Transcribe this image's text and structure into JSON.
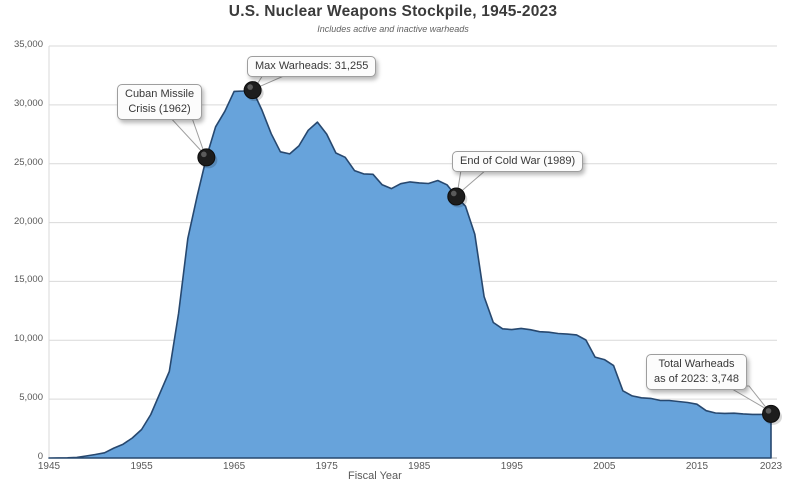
{
  "page": {
    "background": "#ffffff"
  },
  "colors": {
    "area_fill": "#67a3db",
    "area_stroke": "#27486f",
    "grid": "#d9d9d9",
    "axis": "#a8a8a8",
    "marker": "#1d1d1d",
    "marker_highlight": "#666666",
    "callout_bg": "#fcfcfc",
    "callout_border": "#9e9e9e",
    "title_text": "#3b3b3b",
    "tick_text": "#595959"
  },
  "chart_data": {
    "type": "area",
    "title": "U.S. Nuclear Weapons Stockpile, 1945-2023",
    "subtitle": "Includes active and inactive warheads",
    "xlabel": "Fiscal Year",
    "ylabel": "",
    "ylim": [
      0,
      35000
    ],
    "grid": "horizontal",
    "legend": "none",
    "years": [
      1945,
      1946,
      1947,
      1948,
      1949,
      1950,
      1951,
      1952,
      1953,
      1954,
      1955,
      1956,
      1957,
      1958,
      1959,
      1960,
      1961,
      1962,
      1963,
      1964,
      1965,
      1966,
      1967,
      1968,
      1969,
      1970,
      1971,
      1972,
      1973,
      1974,
      1975,
      1976,
      1977,
      1978,
      1979,
      1980,
      1981,
      1982,
      1983,
      1984,
      1985,
      1986,
      1987,
      1988,
      1989,
      1990,
      1991,
      1992,
      1993,
      1994,
      1995,
      1996,
      1997,
      1998,
      1999,
      2000,
      2001,
      2002,
      2003,
      2004,
      2005,
      2006,
      2007,
      2008,
      2009,
      2010,
      2011,
      2012,
      2013,
      2014,
      2015,
      2016,
      2017,
      2018,
      2019,
      2020,
      2021,
      2022,
      2023
    ],
    "values": [
      2,
      9,
      13,
      50,
      170,
      299,
      438,
      841,
      1169,
      1703,
      2422,
      3692,
      5543,
      7345,
      12298,
      18638,
      22229,
      25540,
      28133,
      29463,
      31139,
      31175,
      31255,
      29561,
      27552,
      26008,
      25830,
      26516,
      27835,
      28537,
      27519,
      25914,
      25542,
      24418,
      24138,
      24104,
      23208,
      22886,
      23305,
      23459,
      23368,
      23317,
      23575,
      23205,
      22217,
      21392,
      19008,
      13708,
      11511,
      10979,
      10904,
      11011,
      10903,
      10732,
      10685,
      10577,
      10526,
      10457,
      10027,
      8570,
      8360,
      7853,
      5709,
      5273,
      5113,
      5066,
      4897,
      4881,
      4804,
      4717,
      4571,
      4018,
      3822,
      3785,
      3805,
      3750,
      3708,
      3708,
      3748
    ],
    "yticks": [
      0,
      5000,
      10000,
      15000,
      20000,
      25000,
      30000,
      35000
    ],
    "ytick_labels": [
      "0",
      "5,000",
      "10,000",
      "15,000",
      "20,000",
      "25,000",
      "30,000",
      "35,000"
    ],
    "xticks": [
      1945,
      1955,
      1965,
      1975,
      1985,
      1995,
      2005,
      2015,
      2023
    ],
    "annotations": [
      {
        "text": "Cuban Missile Crisis (1962)",
        "lines": [
          "Cuban Missile",
          "Crisis (1962)"
        ],
        "year": 1962,
        "value": 25540
      },
      {
        "text": "Max Warheads: 31,255",
        "lines": [
          "Max Warheads: 31,255"
        ],
        "year": 1967,
        "value": 31255
      },
      {
        "text": "End of Cold War (1989)",
        "lines": [
          "End of Cold War (1989)"
        ],
        "year": 1989,
        "value": 22217
      },
      {
        "text": "Total Warheads as of 2023: 3,748",
        "lines": [
          "Total Warheads",
          "as of 2023: 3,748"
        ],
        "year": 2023,
        "value": 3748
      }
    ]
  }
}
